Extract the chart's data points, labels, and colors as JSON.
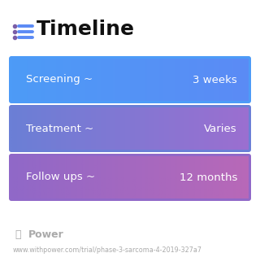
{
  "title": "Timeline",
  "title_fontsize": 18,
  "title_fontweight": "bold",
  "title_color": "#111111",
  "icon_dot_color": "#7b5ea7",
  "icon_line_color": "#5b8af5",
  "background_color": "#ffffff",
  "rows": [
    {
      "label": "Screening ~",
      "value": "3 weeks",
      "color_left": "#4d9bf7",
      "color_right": "#5b8bf5"
    },
    {
      "label": "Treatment ~",
      "value": "Varies",
      "color_left": "#6b7fd6",
      "color_right": "#9b6fd0"
    },
    {
      "label": "Follow ups ~",
      "value": "12 months",
      "color_left": "#9068c8",
      "color_right": "#b868b8"
    }
  ],
  "text_fontsize": 9.5,
  "footer_text": "Power",
  "footer_url": "www.withpower.com/trial/phase-3-sarcoma-4-2019-327a7",
  "footer_color": "#aaaaaa",
  "footer_fontsize": 5.8
}
